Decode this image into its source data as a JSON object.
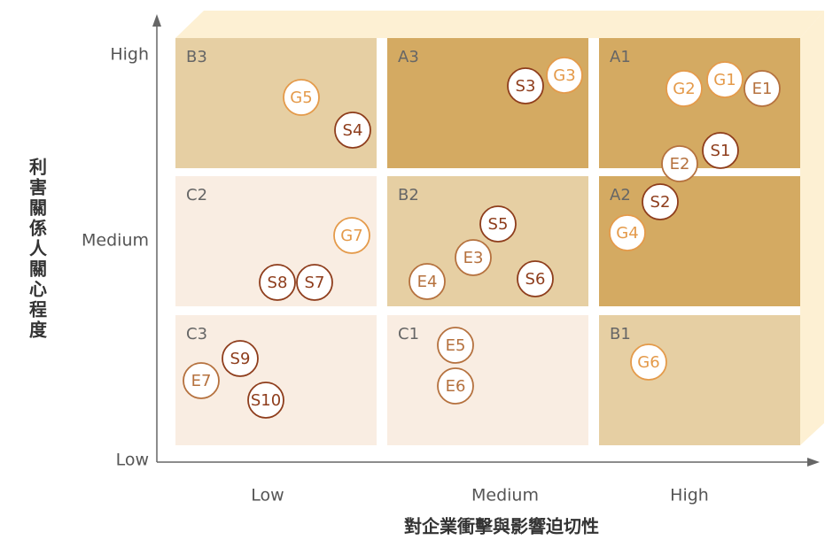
{
  "axes": {
    "y_title": "利害關係人關心程度",
    "x_title": "對企業衝擊與影響迫切性",
    "y_levels": [
      "High",
      "Medium",
      "Low"
    ],
    "x_levels": [
      "Low",
      "Medium",
      "High"
    ]
  },
  "cells": [
    {
      "label": "B3",
      "color": "#e6cfa3"
    },
    {
      "label": "A3",
      "color": "#d4aa62"
    },
    {
      "label": "A1",
      "color": "#d4aa62"
    },
    {
      "label": "C2",
      "color": "#f9ede2"
    },
    {
      "label": "B2",
      "color": "#e6cfa3"
    },
    {
      "label": "A2",
      "color": "#d4aa62"
    },
    {
      "label": "C3",
      "color": "#f9ede2"
    },
    {
      "label": "C1",
      "color": "#f9ede2"
    },
    {
      "label": "B1",
      "color": "#e6cfa3"
    }
  ],
  "nodes": [
    {
      "label": "G5",
      "color": "#e49a4a"
    },
    {
      "label": "S4",
      "color": "#8e3d1c"
    },
    {
      "label": "S3",
      "color": "#8e3d1c"
    },
    {
      "label": "G3",
      "color": "#e49a4a"
    },
    {
      "label": "G2",
      "color": "#e49a4a"
    },
    {
      "label": "G1",
      "color": "#e49a4a"
    },
    {
      "label": "E1",
      "color": "#b5713e"
    },
    {
      "label": "S1",
      "color": "#8e3d1c"
    },
    {
      "label": "E2",
      "color": "#b5713e"
    },
    {
      "label": "S2",
      "color": "#8e3d1c"
    },
    {
      "label": "G4",
      "color": "#e49a4a"
    },
    {
      "label": "G7",
      "color": "#e49a4a"
    },
    {
      "label": "S8",
      "color": "#8e3d1c"
    },
    {
      "label": "S7",
      "color": "#8e3d1c"
    },
    {
      "label": "S5",
      "color": "#8e3d1c"
    },
    {
      "label": "E3",
      "color": "#b5713e"
    },
    {
      "label": "E4",
      "color": "#b5713e"
    },
    {
      "label": "S6",
      "color": "#8e3d1c"
    },
    {
      "label": "S9",
      "color": "#8e3d1c"
    },
    {
      "label": "E7",
      "color": "#b5713e"
    },
    {
      "label": "S10",
      "color": "#8e3d1c"
    },
    {
      "label": "E5",
      "color": "#b5713e"
    },
    {
      "label": "E6",
      "color": "#b5713e"
    },
    {
      "label": "G6",
      "color": "#e49a4a"
    }
  ]
}
